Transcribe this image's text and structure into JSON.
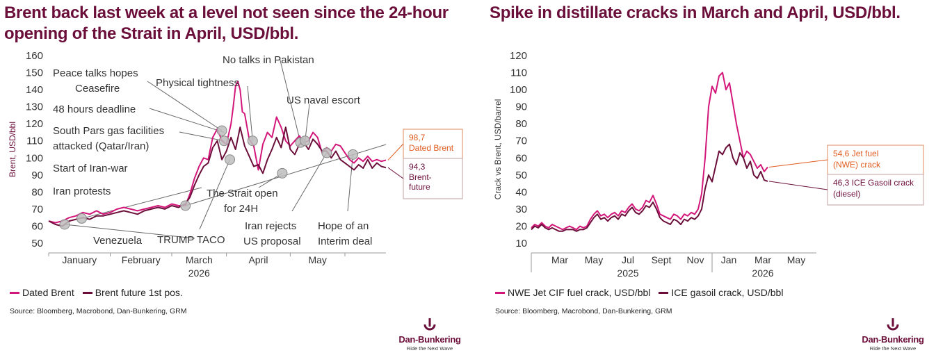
{
  "colors": {
    "pink": "#d3177a",
    "maroon": "#6b0f3a",
    "label_border": "#e08a5a",
    "label_text": "#e05a1e"
  },
  "left": {
    "title": "Brent back last week at a level not seen since the 24-hour opening of the Strait in April, USD/bbl.",
    "legend": [
      "Dated Brent",
      "Brent future 1st pos."
    ],
    "source": "Source: Bloomberg, Macrobond, Dan-Bunkering, GRM"
  },
  "right": {
    "title": "Spike in distillate cracks in March and April, USD/bbl.",
    "legend": [
      "NWE Jet CIF fuel crack, USD/bbl",
      "ICE gasoil crack, USD/bbl"
    ],
    "source": "Source: Bloomberg, Macrobond, Dan-Bunkering, GRM"
  },
  "logo": {
    "brand": "Dan-Bunkering",
    "tagline": "Ride the Next Wave"
  },
  "chart_data": [
    {
      "type": "line",
      "ylabel": "Brent, USD/bbl",
      "ylim": [
        50,
        160
      ],
      "yticks": [
        "50",
        "60",
        "70",
        "80",
        "90",
        "100",
        "110",
        "120",
        "130",
        "140",
        "150",
        "160"
      ],
      "xticks": [
        "January",
        "February",
        "March",
        "April",
        "May"
      ],
      "xyear": "2026",
      "end_labels": [
        {
          "value": "98,7",
          "text": "Dated Brent"
        },
        {
          "value": "94,3",
          "text": "Brent-future"
        }
      ],
      "annotations": [
        "Venezuela",
        "Iran protests",
        "Start of Iran-war",
        "South Pars gas facilities attacked (Qatar/Iran)",
        "48 hours deadline",
        "Peace talks hopes Ceasefire",
        "Physical tightness",
        "TRUMP TACO",
        "No talks in Pakistan",
        "The Strait open for 24H",
        "US naval escort",
        "Iran rejects US proposal",
        "Hope of an Interim deal"
      ],
      "series": [
        {
          "name": "Dated Brent",
          "color": "#d3177a",
          "x": [
            0,
            3,
            6,
            9,
            12,
            15,
            18,
            21,
            24,
            27,
            30,
            33,
            36,
            39,
            42,
            45,
            48,
            51,
            54,
            57,
            60,
            62,
            64,
            66,
            68,
            70,
            72,
            74,
            76,
            78,
            80,
            81,
            82,
            83,
            84,
            85,
            86,
            88,
            90,
            92,
            94,
            96,
            98,
            100,
            102,
            104,
            106,
            108,
            110,
            112,
            114,
            116,
            118,
            120,
            122,
            124,
            126,
            128,
            130,
            132,
            134,
            136,
            138,
            140,
            142,
            144,
            146,
            148
          ],
          "y": [
            63,
            62,
            63,
            65,
            66,
            68,
            67,
            69,
            67,
            68,
            70,
            71,
            70,
            69,
            70,
            71,
            72,
            71,
            73,
            72,
            72,
            79,
            88,
            95,
            100,
            99,
            112,
            117,
            110,
            108,
            120,
            130,
            142,
            145,
            140,
            127,
            126,
            111,
            107,
            93,
            108,
            115,
            112,
            124,
            118,
            110,
            107,
            110,
            113,
            109,
            110,
            115,
            112,
            103,
            106,
            104,
            108,
            107,
            103,
            99,
            97,
            100,
            98,
            101,
            98,
            99,
            98,
            98.7
          ]
        },
        {
          "name": "Brent future 1st pos.",
          "color": "#6b0f3a",
          "x": [
            0,
            3,
            6,
            9,
            12,
            15,
            18,
            21,
            24,
            27,
            30,
            33,
            36,
            39,
            42,
            45,
            48,
            51,
            54,
            57,
            60,
            62,
            64,
            66,
            68,
            70,
            72,
            74,
            76,
            78,
            80,
            82,
            84,
            86,
            88,
            90,
            92,
            94,
            96,
            98,
            100,
            102,
            104,
            106,
            108,
            110,
            112,
            114,
            116,
            118,
            120,
            122,
            124,
            126,
            128,
            130,
            132,
            134,
            136,
            138,
            140,
            142,
            144,
            146,
            148
          ],
          "y": [
            63,
            61,
            60,
            63,
            64,
            65,
            64,
            66,
            66,
            67,
            68,
            69,
            68,
            67,
            69,
            70,
            71,
            70,
            72,
            71,
            73,
            77,
            84,
            90,
            95,
            97,
            106,
            110,
            99,
            104,
            112,
            105,
            118,
            107,
            101,
            95,
            96,
            91,
            99,
            105,
            112,
            106,
            118,
            105,
            102,
            108,
            109,
            105,
            111,
            108,
            104,
            104,
            100,
            104,
            99,
            97,
            95,
            93,
            96,
            94,
            99,
            94,
            97,
            95,
            94.3
          ]
        }
      ]
    },
    {
      "type": "line",
      "ylabel": "Crack vs Brent, USD/barrel",
      "ylim": [
        10,
        120
      ],
      "yticks": [
        "10",
        "20",
        "30",
        "40",
        "50",
        "60",
        "70",
        "80",
        "90",
        "100",
        "110",
        "120"
      ],
      "xticks": [
        "Mar",
        "May",
        "Jul",
        "Sept",
        "Nov",
        "Jan",
        "Mar",
        "May"
      ],
      "xyears": [
        "2025",
        "2026"
      ],
      "end_labels": [
        {
          "value": "54,6",
          "text": "Jet fuel (NWE) crack"
        },
        {
          "value": "46,3",
          "text": "ICE Gasoil crack (diesel)"
        }
      ],
      "series": [
        {
          "name": "NWE Jet CIF fuel crack, USD/bbl",
          "color": "#d3177a",
          "x": [
            0,
            5,
            10,
            15,
            20,
            25,
            30,
            35,
            40,
            45,
            50,
            55,
            60,
            65,
            70,
            75,
            80,
            85,
            90,
            95,
            100,
            105,
            110,
            115,
            120,
            125,
            130,
            135,
            140,
            145,
            150,
            155,
            160,
            165,
            170,
            175,
            180,
            185,
            190,
            195,
            200,
            205,
            210,
            215,
            220,
            225,
            230,
            235,
            240,
            245,
            250,
            255,
            260,
            265,
            270,
            275,
            280,
            285,
            290,
            295,
            300,
            305,
            310,
            315,
            320,
            325,
            330,
            335,
            340,
            345,
            350,
            355,
            360,
            365,
            370,
            375,
            380,
            385,
            390,
            395,
            400,
            405,
            410
          ],
          "y": [
            19,
            21,
            20,
            22,
            20,
            19,
            21,
            20,
            19,
            18,
            19,
            20,
            19,
            18,
            20,
            19,
            20,
            24,
            27,
            29,
            26,
            27,
            25,
            27,
            28,
            26,
            29,
            28,
            31,
            33,
            30,
            29,
            31,
            35,
            34,
            38,
            33,
            27,
            26,
            25,
            24,
            27,
            26,
            24,
            27,
            26,
            28,
            27,
            30,
            39,
            60,
            90,
            102,
            98,
            108,
            110,
            100,
            104,
            92,
            80,
            70,
            60,
            64,
            62,
            58,
            54,
            56,
            52,
            54.6,
            54.6,
            54.6,
            54.6,
            54.6,
            54.6,
            54.6,
            54.6,
            54.6,
            54.6,
            54.6,
            54.6,
            54.6,
            54.6,
            54.6
          ]
        },
        {
          "name": "ICE gasoil crack, USD/bbl",
          "color": "#6b0f3a",
          "x": [
            0,
            5,
            10,
            15,
            20,
            25,
            30,
            35,
            40,
            45,
            50,
            55,
            60,
            65,
            70,
            75,
            80,
            85,
            90,
            95,
            100,
            105,
            110,
            115,
            120,
            125,
            130,
            135,
            140,
            145,
            150,
            155,
            160,
            165,
            170,
            175,
            180,
            185,
            190,
            195,
            200,
            205,
            210,
            215,
            220,
            225,
            230,
            235,
            240,
            245,
            250,
            255,
            260,
            265,
            270,
            275,
            280,
            285,
            290,
            295,
            300,
            305,
            310,
            315,
            320,
            325,
            330,
            335,
            340
          ],
          "y": [
            18,
            20,
            19,
            21,
            19,
            18,
            19,
            18,
            17,
            17,
            18,
            18,
            18,
            17,
            18,
            18,
            19,
            22,
            25,
            27,
            24,
            25,
            23,
            25,
            26,
            24,
            27,
            26,
            29,
            31,
            28,
            27,
            29,
            32,
            31,
            34,
            30,
            25,
            23,
            22,
            21,
            24,
            23,
            21,
            24,
            23,
            25,
            24,
            26,
            30,
            42,
            50,
            46,
            55,
            64,
            62,
            66,
            68,
            60,
            56,
            63,
            60,
            54,
            58,
            50,
            48,
            52,
            47,
            46.3
          ]
        }
      ]
    }
  ]
}
